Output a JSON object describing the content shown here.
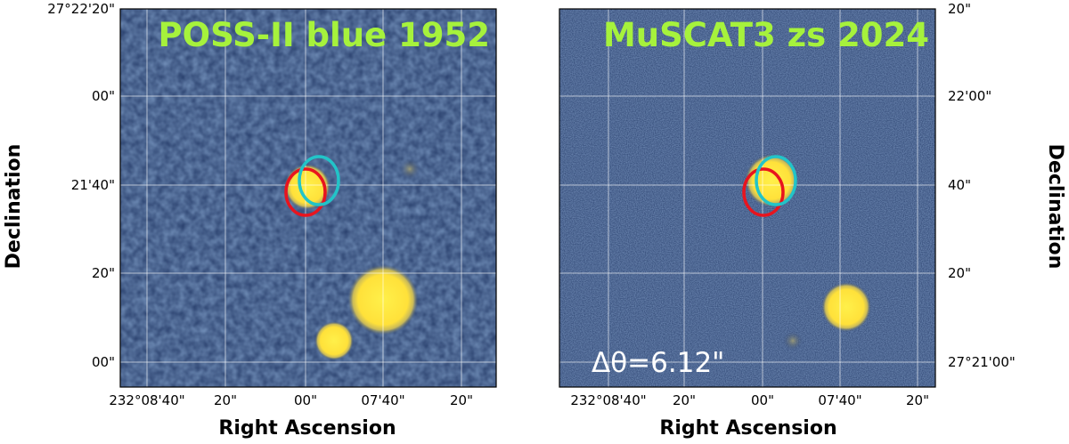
{
  "panels": [
    {
      "title": "POSS-II blue 1952",
      "x_axis_label": "Right Ascension",
      "y_axis_label": "Declination",
      "x_tick_labels": [
        "232°08'40\"",
        "20\"",
        "00\"",
        "07'40\"",
        "20\""
      ],
      "y_tick_labels": [
        "27°22'20\"",
        "00\"",
        "21'40\"",
        "20\"",
        "00\""
      ]
    },
    {
      "title": "MuSCAT3 zs 2024",
      "x_axis_label": "Right Ascension",
      "y_axis_label": "Declination",
      "x_tick_labels": [
        "232°08'40\"",
        "20\"",
        "00\"",
        "07'40\"",
        "20\""
      ],
      "y_tick_labels": [
        "20\"",
        "22'00\"",
        "40\"",
        "20\"",
        "27°21'00\""
      ],
      "annotation": "Δθ=6.12\""
    }
  ]
}
